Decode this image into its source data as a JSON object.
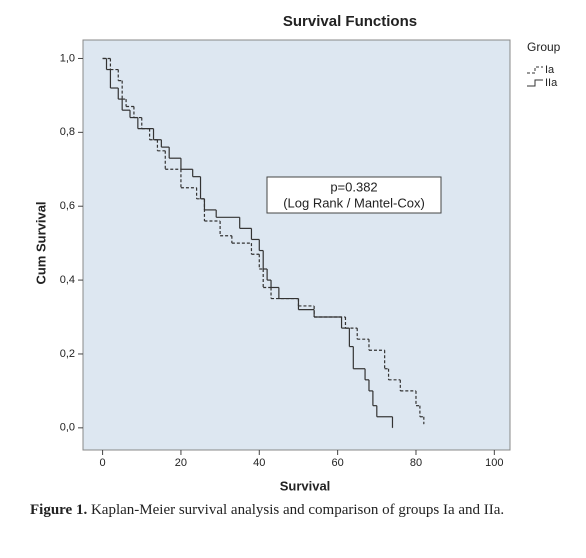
{
  "chart_data": {
    "type": "step",
    "title": "Survival Functions",
    "xlabel": "Survival",
    "ylabel": "Cum Survival",
    "legend_title": "Group",
    "xlim": [
      -5,
      104
    ],
    "xticks": [
      0,
      20,
      40,
      60,
      80,
      100
    ],
    "ylim": [
      -0.06,
      1.05
    ],
    "yticks": [
      {
        "value": 0,
        "label": "0,0"
      },
      {
        "value": 0.2,
        "label": "0,2"
      },
      {
        "value": 0.4,
        "label": "0,4"
      },
      {
        "value": 0.6,
        "label": "0,6"
      },
      {
        "value": 0.8,
        "label": "0,8"
      },
      {
        "value": 1,
        "label": "1,0"
      }
    ],
    "grid": false,
    "annotation": [
      "p=0.382",
      "(Log Rank / Mantel-Cox)"
    ],
    "series": [
      {
        "name": "Ia",
        "color": "#333333",
        "dashed": true,
        "x": [
          0,
          2,
          4,
          5,
          6,
          8,
          10,
          12,
          14,
          16,
          20,
          24,
          26,
          30,
          33,
          38,
          40,
          41,
          43,
          50,
          54,
          62,
          65,
          68,
          72,
          73,
          76,
          80,
          81,
          82
        ],
        "values": [
          1.0,
          0.97,
          0.94,
          0.89,
          0.87,
          0.84,
          0.81,
          0.78,
          0.75,
          0.7,
          0.65,
          0.62,
          0.56,
          0.52,
          0.5,
          0.47,
          0.43,
          0.38,
          0.35,
          0.33,
          0.3,
          0.27,
          0.24,
          0.21,
          0.16,
          0.13,
          0.1,
          0.06,
          0.03,
          0.01
        ]
      },
      {
        "name": "IIa",
        "color": "#333333",
        "dashed": false,
        "x": [
          0,
          1,
          2,
          4,
          5,
          7,
          9,
          13,
          15,
          17,
          20,
          23,
          25,
          26,
          29,
          35,
          38,
          40,
          41,
          42,
          43,
          45,
          50,
          54,
          61,
          63,
          64,
          67,
          68,
          69,
          70,
          74
        ],
        "values": [
          1.0,
          0.97,
          0.92,
          0.89,
          0.86,
          0.84,
          0.81,
          0.78,
          0.76,
          0.73,
          0.7,
          0.68,
          0.62,
          0.59,
          0.57,
          0.54,
          0.51,
          0.48,
          0.43,
          0.4,
          0.38,
          0.35,
          0.32,
          0.3,
          0.27,
          0.22,
          0.16,
          0.13,
          0.1,
          0.06,
          0.03,
          0.0
        ]
      }
    ]
  },
  "caption": {
    "label": "Figure 1.",
    "text": "Kaplan-Meier survival analysis and comparison of groups Ia and IIa."
  }
}
